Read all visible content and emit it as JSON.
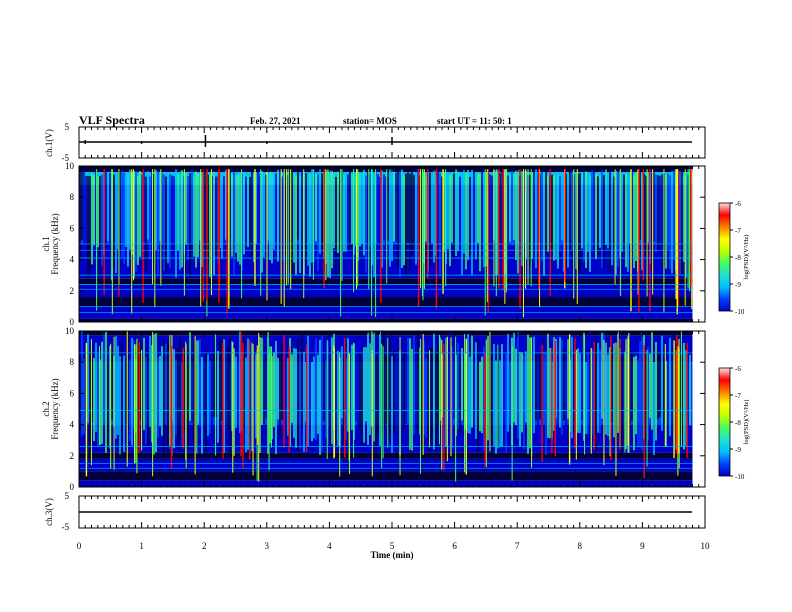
{
  "header": {
    "title": "VLF Spectra",
    "date": "Feb. 27, 2021",
    "station": "station= MOS",
    "start": "start  UT  =   11: 50: 1"
  },
  "colors": {
    "colormap": [
      "#00003a",
      "#0000c8",
      "#0040ff",
      "#00c0ff",
      "#20e0d0",
      "#40ff60",
      "#c0ff00",
      "#ffff00",
      "#ff8000",
      "#ff0000",
      "#ffe0e0"
    ],
    "frame": "#000000"
  },
  "chart_data": [
    {
      "type": "line",
      "panel": "ch1-waveform",
      "ylabel": "ch.1(V)",
      "ylim": [
        -5,
        5
      ],
      "yticks": [
        "5",
        "-5"
      ],
      "xlim": [
        0,
        10
      ],
      "series": [
        {
          "x": [
            0,
            9.8
          ],
          "y": [
            0,
            0
          ]
        }
      ]
    },
    {
      "type": "heatmap",
      "panel": "ch1-spectrogram",
      "ylabel_channel": "ch.1",
      "ylabel": "Frequency (kHz)",
      "ylim": [
        0,
        10
      ],
      "yticks": [
        "0",
        "2",
        "4",
        "6",
        "8",
        "10"
      ],
      "xlim": [
        0,
        10
      ],
      "data_extent_min": 9.8,
      "colorbar": {
        "label": "log(PSD)(V²/Hz)",
        "range": [
          -10,
          -6
        ],
        "ticks": [
          "-6",
          "-7",
          "-8",
          "-9",
          "-10"
        ]
      }
    },
    {
      "type": "heatmap",
      "panel": "ch2-spectrogram",
      "ylabel_channel": "ch.2",
      "ylabel": "Frequency (kHz)",
      "ylim": [
        0,
        10
      ],
      "yticks": [
        "0",
        "2",
        "4",
        "6",
        "8",
        "10"
      ],
      "xlim": [
        0,
        10
      ],
      "data_extent_min": 9.8,
      "colorbar": {
        "label": "log(PSD)(V²/Hz)",
        "range": [
          -10,
          -6
        ],
        "ticks": [
          "-6",
          "-7",
          "-8",
          "-9",
          "-10"
        ]
      }
    },
    {
      "type": "line",
      "panel": "ch3-waveform",
      "ylabel": "ch.3(V)",
      "ylim": [
        -5,
        5
      ],
      "yticks": [
        "5",
        "-5"
      ],
      "xlim": [
        0,
        10
      ],
      "series": [
        {
          "x": [
            0,
            9.8
          ],
          "y": [
            0,
            0
          ]
        }
      ],
      "xticks": [
        "0",
        "1",
        "2",
        "3",
        "4",
        "5",
        "6",
        "7",
        "8",
        "9",
        "10"
      ],
      "xlabel": "Time  (min)"
    }
  ]
}
